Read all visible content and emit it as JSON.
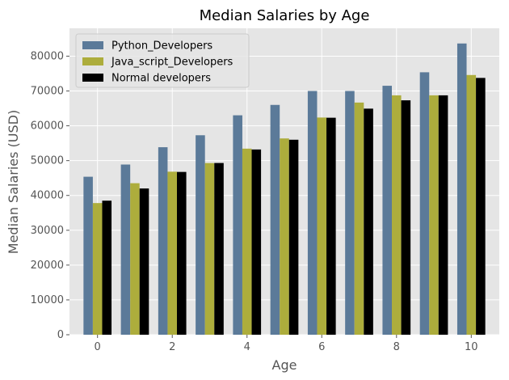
{
  "chart_data": {
    "type": "bar",
    "title": "Median Salaries by Age",
    "xlabel": "Age",
    "ylabel": "Median Salaries (USD)",
    "categories": [
      0,
      1,
      2,
      3,
      4,
      5,
      6,
      7,
      8,
      9,
      10
    ],
    "x_ticks": [
      0,
      2,
      4,
      6,
      8,
      10
    ],
    "xlim": [
      -0.75,
      10.75
    ],
    "y_ticks": [
      0,
      10000,
      20000,
      30000,
      40000,
      50000,
      60000,
      70000,
      80000
    ],
    "ylim": [
      0,
      88000
    ],
    "grid": true,
    "legend_position": "top-left",
    "series": [
      {
        "name": "Python_Developers",
        "color": "#5b7a99",
        "values": [
          45372,
          48876,
          53850,
          57287,
          63016,
          65998,
          70003,
          70000,
          71496,
          75370,
          83640
        ]
      },
      {
        "name": "Java_script_Developers",
        "color": "#adad3c",
        "values": [
          37810,
          43515,
          46823,
          49293,
          53437,
          56373,
          62375,
          66674,
          68745,
          68746,
          74583
        ]
      },
      {
        "name": "Normal developers",
        "color": "#000000",
        "values": [
          38496,
          42000,
          46752,
          49320,
          53200,
          56000,
          62316,
          64928,
          67317,
          68748,
          73752
        ]
      }
    ]
  }
}
